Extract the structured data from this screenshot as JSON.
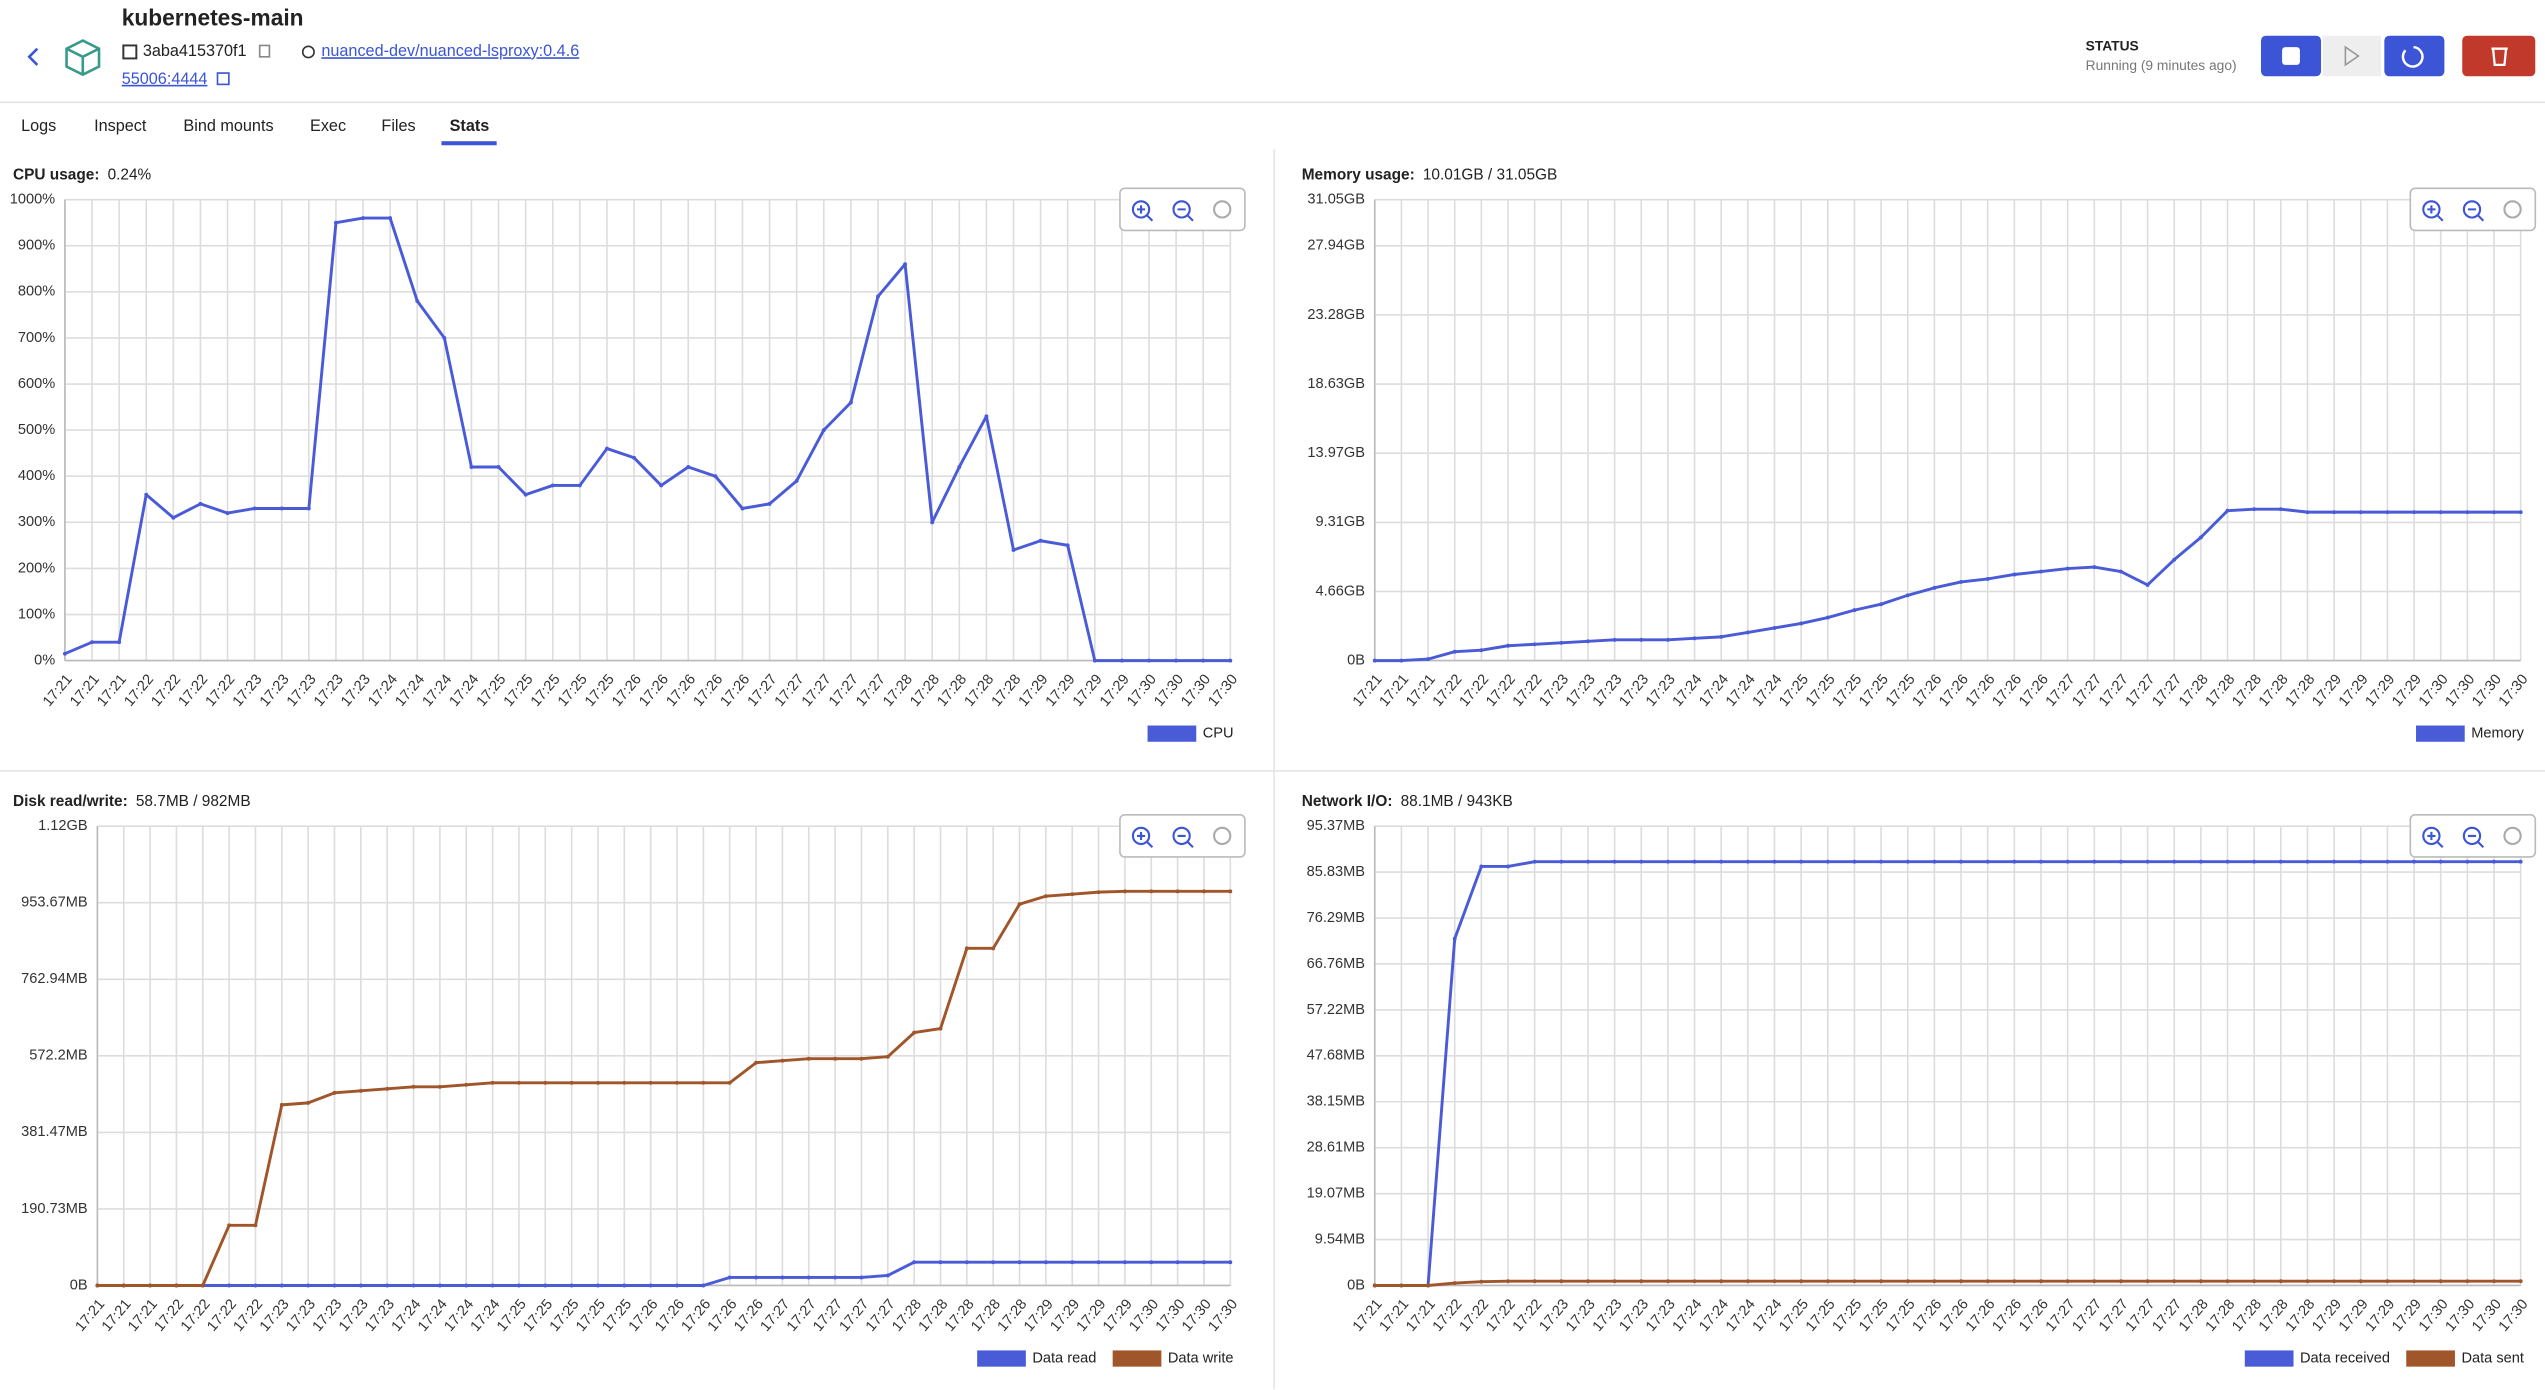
{
  "header": {
    "title": "kubernetes-main",
    "container_id": "3aba415370f1",
    "image": "nuanced-dev/nuanced-lsproxy:0.4.6",
    "port": "55006:4444",
    "status_label": "STATUS",
    "status": "Running (9 minutes ago)"
  },
  "tabs": [
    "Logs",
    "Inspect",
    "Bind mounts",
    "Exec",
    "Files",
    "Stats"
  ],
  "chart_data": [
    {
      "type": "line",
      "title": "CPU usage:",
      "subtitle": "0.24%",
      "categories": [
        "17:21",
        "17:21",
        "17:21",
        "17:22",
        "17:22",
        "17:22",
        "17:22",
        "17:23",
        "17:23",
        "17:23",
        "17:23",
        "17:23",
        "17:24",
        "17:24",
        "17:24",
        "17:24",
        "17:25",
        "17:25",
        "17:25",
        "17:25",
        "17:25",
        "17:26",
        "17:26",
        "17:26",
        "17:26",
        "17:26",
        "17:27",
        "17:27",
        "17:27",
        "17:27",
        "17:27",
        "17:28",
        "17:28",
        "17:28",
        "17:28",
        "17:28",
        "17:29",
        "17:29",
        "17:29",
        "17:29",
        "17:30",
        "17:30",
        "17:30",
        "17:30"
      ],
      "series": [
        {
          "name": "CPU",
          "color": "#4a5bd8",
          "values": [
            15,
            40,
            40,
            360,
            310,
            340,
            320,
            330,
            330,
            330,
            950,
            960,
            960,
            780,
            700,
            420,
            420,
            360,
            380,
            380,
            460,
            440,
            380,
            420,
            400,
            330,
            340,
            390,
            500,
            560,
            790,
            860,
            300,
            420,
            530,
            240,
            260,
            250,
            0,
            0,
            0,
            0,
            0,
            0
          ]
        }
      ],
      "ylim": [
        0,
        1000
      ],
      "yticks": [
        {
          "value": 0,
          "label": "0%"
        },
        {
          "value": 100,
          "label": "100%"
        },
        {
          "value": 200,
          "label": "200%"
        },
        {
          "value": 300,
          "label": "300%"
        },
        {
          "value": 400,
          "label": "400%"
        },
        {
          "value": 500,
          "label": "500%"
        },
        {
          "value": 600,
          "label": "600%"
        },
        {
          "value": 700,
          "label": "700%"
        },
        {
          "value": 800,
          "label": "800%"
        },
        {
          "value": 900,
          "label": "900%"
        },
        {
          "value": 1000,
          "label": "1000%"
        }
      ],
      "grid": true
    },
    {
      "type": "line",
      "title": "Memory usage:",
      "subtitle": "10.01GB / 31.05GB",
      "categories": [
        "17:21",
        "17:21",
        "17:21",
        "17:22",
        "17:22",
        "17:22",
        "17:22",
        "17:23",
        "17:23",
        "17:23",
        "17:23",
        "17:23",
        "17:24",
        "17:24",
        "17:24",
        "17:24",
        "17:25",
        "17:25",
        "17:25",
        "17:25",
        "17:25",
        "17:26",
        "17:26",
        "17:26",
        "17:26",
        "17:26",
        "17:27",
        "17:27",
        "17:27",
        "17:27",
        "17:27",
        "17:28",
        "17:28",
        "17:28",
        "17:28",
        "17:28",
        "17:29",
        "17:29",
        "17:29",
        "17:29",
        "17:30",
        "17:30",
        "17:30",
        "17:30"
      ],
      "series": [
        {
          "name": "Memory",
          "color": "#4a5bd8",
          "values": [
            0,
            0,
            0.1,
            0.6,
            0.7,
            1.0,
            1.1,
            1.2,
            1.3,
            1.4,
            1.4,
            1.4,
            1.5,
            1.6,
            1.9,
            2.2,
            2.5,
            2.9,
            3.4,
            3.8,
            4.4,
            4.9,
            5.3,
            5.5,
            5.8,
            6.0,
            6.2,
            6.3,
            6.0,
            5.1,
            6.8,
            8.3,
            10.1,
            10.2,
            10.2,
            10.0,
            10.0,
            10.0,
            10.0,
            10.0,
            10.0,
            10.0,
            10.0,
            10.0
          ]
        }
      ],
      "ylim": [
        0,
        31.05
      ],
      "yticks": [
        {
          "value": 0,
          "label": "0B"
        },
        {
          "value": 4.66,
          "label": "4.66GB"
        },
        {
          "value": 9.31,
          "label": "9.31GB"
        },
        {
          "value": 13.97,
          "label": "13.97GB"
        },
        {
          "value": 18.63,
          "label": "18.63GB"
        },
        {
          "value": 23.28,
          "label": "23.28GB"
        },
        {
          "value": 27.94,
          "label": "27.94GB"
        },
        {
          "value": 31.05,
          "label": "31.05GB"
        }
      ],
      "grid": true
    },
    {
      "type": "line",
      "title": "Disk read/write:",
      "subtitle": "58.7MB / 982MB",
      "categories": [
        "17:21",
        "17:21",
        "17:21",
        "17:22",
        "17:22",
        "17:22",
        "17:22",
        "17:23",
        "17:23",
        "17:23",
        "17:23",
        "17:23",
        "17:24",
        "17:24",
        "17:24",
        "17:24",
        "17:25",
        "17:25",
        "17:25",
        "17:25",
        "17:25",
        "17:26",
        "17:26",
        "17:26",
        "17:26",
        "17:26",
        "17:27",
        "17:27",
        "17:27",
        "17:27",
        "17:27",
        "17:28",
        "17:28",
        "17:28",
        "17:28",
        "17:28",
        "17:29",
        "17:29",
        "17:29",
        "17:29",
        "17:30",
        "17:30",
        "17:30",
        "17:30"
      ],
      "series": [
        {
          "name": "Data read",
          "color": "#4a5bd8",
          "values": [
            0,
            0,
            0,
            0,
            0,
            0,
            0,
            0,
            0,
            0,
            0,
            0,
            0,
            0,
            0,
            0,
            0,
            0,
            0,
            0,
            0,
            0,
            0,
            0,
            20,
            20,
            20,
            20,
            20,
            20,
            25,
            58,
            58,
            58,
            58,
            58,
            58,
            58,
            58,
            58,
            58,
            58,
            58,
            58
          ]
        },
        {
          "name": "Data write",
          "color": "#a0562a",
          "values": [
            0,
            0,
            0,
            0,
            0,
            150,
            150,
            450,
            455,
            480,
            485,
            490,
            495,
            495,
            500,
            505,
            505,
            505,
            505,
            505,
            505,
            505,
            505,
            505,
            505,
            555,
            560,
            565,
            565,
            565,
            570,
            630,
            640,
            840,
            840,
            950,
            970,
            975,
            980,
            982,
            982,
            982,
            982,
            982
          ]
        }
      ],
      "ylim": [
        0,
        1144.38
      ],
      "yticks": [
        {
          "value": 0,
          "label": "0B"
        },
        {
          "value": 190.73,
          "label": "190.73MB"
        },
        {
          "value": 381.47,
          "label": "381.47MB"
        },
        {
          "value": 572.2,
          "label": "572.2MB"
        },
        {
          "value": 762.94,
          "label": "762.94MB"
        },
        {
          "value": 953.67,
          "label": "953.67MB"
        },
        {
          "value": 1144.38,
          "label": "1.12GB"
        }
      ],
      "grid": true
    },
    {
      "type": "line",
      "title": "Network I/O:",
      "subtitle": "88.1MB / 943KB",
      "categories": [
        "17:21",
        "17:21",
        "17:21",
        "17:22",
        "17:22",
        "17:22",
        "17:22",
        "17:23",
        "17:23",
        "17:23",
        "17:23",
        "17:23",
        "17:24",
        "17:24",
        "17:24",
        "17:24",
        "17:25",
        "17:25",
        "17:25",
        "17:25",
        "17:25",
        "17:26",
        "17:26",
        "17:26",
        "17:26",
        "17:26",
        "17:27",
        "17:27",
        "17:27",
        "17:27",
        "17:27",
        "17:28",
        "17:28",
        "17:28",
        "17:28",
        "17:28",
        "17:29",
        "17:29",
        "17:29",
        "17:29",
        "17:30",
        "17:30",
        "17:30",
        "17:30"
      ],
      "series": [
        {
          "name": "Data received",
          "color": "#4a5bd8",
          "values": [
            0,
            0,
            0,
            72,
            87,
            87,
            88,
            88,
            88,
            88,
            88,
            88,
            88,
            88,
            88,
            88,
            88,
            88,
            88,
            88,
            88,
            88,
            88,
            88,
            88,
            88,
            88,
            88,
            88,
            88,
            88,
            88,
            88,
            88,
            88,
            88,
            88,
            88,
            88,
            88,
            88,
            88,
            88,
            88
          ]
        },
        {
          "name": "Data sent",
          "color": "#a0562a",
          "values": [
            0,
            0,
            0,
            0.5,
            0.8,
            0.9,
            0.9,
            0.9,
            0.9,
            0.9,
            0.9,
            0.9,
            0.9,
            0.9,
            0.9,
            0.9,
            0.9,
            0.9,
            0.9,
            0.9,
            0.9,
            0.9,
            0.9,
            0.9,
            0.9,
            0.9,
            0.9,
            0.9,
            0.9,
            0.9,
            0.9,
            0.9,
            0.9,
            0.9,
            0.9,
            0.9,
            0.9,
            0.9,
            0.9,
            0.9,
            0.9,
            0.9,
            0.9,
            0.9
          ]
        }
      ],
      "ylim": [
        0,
        95.37
      ],
      "yticks": [
        {
          "value": 0,
          "label": "0B"
        },
        {
          "value": 9.54,
          "label": "9.54MB"
        },
        {
          "value": 19.07,
          "label": "19.07MB"
        },
        {
          "value": 28.61,
          "label": "28.61MB"
        },
        {
          "value": 38.15,
          "label": "38.15MB"
        },
        {
          "value": 47.68,
          "label": "47.68MB"
        },
        {
          "value": 57.22,
          "label": "57.22MB"
        },
        {
          "value": 66.76,
          "label": "66.76MB"
        },
        {
          "value": 76.29,
          "label": "76.29MB"
        },
        {
          "value": 85.83,
          "label": "85.83MB"
        },
        {
          "value": 95.37,
          "label": "95.37MB"
        }
      ],
      "grid": true
    }
  ]
}
